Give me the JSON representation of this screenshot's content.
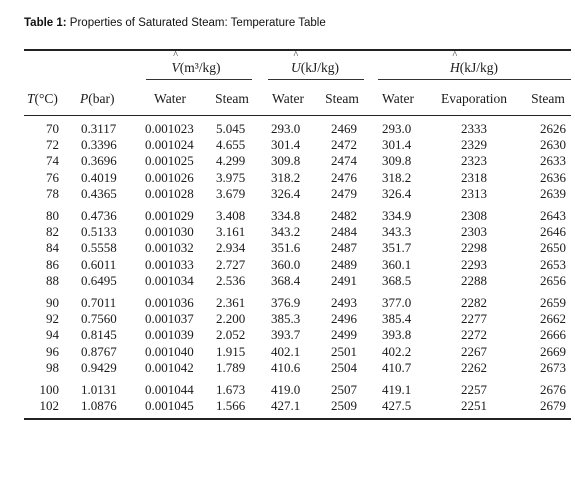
{
  "caption": {
    "label": "Table 1:",
    "text": " Properties of Saturated Steam: Temperature Table"
  },
  "groups": {
    "volume": {
      "symbol": "V",
      "units": "(m³/kg)"
    },
    "energy": {
      "symbol": "U",
      "units": "(kJ/kg)"
    },
    "enthalpy": {
      "symbol": "H",
      "units": "(kJ/kg)"
    }
  },
  "columns": {
    "temperature": {
      "symbol": "T",
      "units": "(°C)"
    },
    "pressure": {
      "symbol": "P",
      "units": "(bar)"
    },
    "v_water": "Water",
    "v_steam": "Steam",
    "u_water": "Water",
    "u_steam": "Steam",
    "h_water": "Water",
    "h_evap": "Evaporation",
    "h_steam": "Steam"
  },
  "rows": [
    [
      "70",
      "0.3117",
      "0.001023",
      "5.045",
      "293.0",
      "2469",
      "293.0",
      "2333",
      "2626"
    ],
    [
      "72",
      "0.3396",
      "0.001024",
      "4.655",
      "301.4",
      "2472",
      "301.4",
      "2329",
      "2630"
    ],
    [
      "74",
      "0.3696",
      "0.001025",
      "4.299",
      "309.8",
      "2474",
      "309.8",
      "2323",
      "2633"
    ],
    [
      "76",
      "0.4019",
      "0.001026",
      "3.975",
      "318.2",
      "2476",
      "318.2",
      "2318",
      "2636"
    ],
    [
      "78",
      "0.4365",
      "0.001028",
      "3.679",
      "326.4",
      "2479",
      "326.4",
      "2313",
      "2639"
    ],
    [
      "80",
      "0.4736",
      "0.001029",
      "3.408",
      "334.8",
      "2482",
      "334.9",
      "2308",
      "2643"
    ],
    [
      "82",
      "0.5133",
      "0.001030",
      "3.161",
      "343.2",
      "2484",
      "343.3",
      "2303",
      "2646"
    ],
    [
      "84",
      "0.5558",
      "0.001032",
      "2.934",
      "351.6",
      "2487",
      "351.7",
      "2298",
      "2650"
    ],
    [
      "86",
      "0.6011",
      "0.001033",
      "2.727",
      "360.0",
      "2489",
      "360.1",
      "2293",
      "2653"
    ],
    [
      "88",
      "0.6495",
      "0.001034",
      "2.536",
      "368.4",
      "2491",
      "368.5",
      "2288",
      "2656"
    ],
    [
      "90",
      "0.7011",
      "0.001036",
      "2.361",
      "376.9",
      "2493",
      "377.0",
      "2282",
      "2659"
    ],
    [
      "92",
      "0.7560",
      "0.001037",
      "2.200",
      "385.3",
      "2496",
      "385.4",
      "2277",
      "2662"
    ],
    [
      "94",
      "0.8145",
      "0.001039",
      "2.052",
      "393.7",
      "2499",
      "393.8",
      "2272",
      "2666"
    ],
    [
      "96",
      "0.8767",
      "0.001040",
      "1.915",
      "402.1",
      "2501",
      "402.2",
      "2267",
      "2669"
    ],
    [
      "98",
      "0.9429",
      "0.001042",
      "1.789",
      "410.6",
      "2504",
      "410.7",
      "2262",
      "2673"
    ],
    [
      "100",
      "1.0131",
      "0.001044",
      "1.673",
      "419.0",
      "2507",
      "419.1",
      "2257",
      "2676"
    ],
    [
      "102",
      "1.0876",
      "0.001045",
      "1.566",
      "427.1",
      "2509",
      "427.5",
      "2251",
      "2679"
    ]
  ]
}
